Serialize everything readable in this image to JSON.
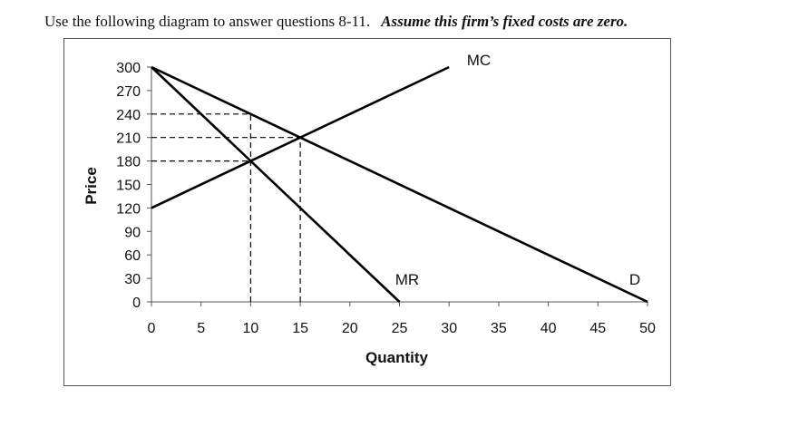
{
  "header": {
    "instruction": "Use the following diagram to answer questions 8-11.",
    "assumption": "Assume this firm’s fixed costs are zero."
  },
  "chart_data": {
    "type": "line",
    "xlabel": "Quantity",
    "ylabel": "Price",
    "xlim": [
      0,
      50
    ],
    "ylim": [
      0,
      300
    ],
    "xticks": [
      0,
      5,
      10,
      15,
      20,
      25,
      30,
      35,
      40,
      45,
      50
    ],
    "yticks": [
      0,
      30,
      60,
      90,
      120,
      150,
      180,
      210,
      240,
      270,
      300
    ],
    "grid": false,
    "series": [
      {
        "name": "MC",
        "x": [
          0,
          30
        ],
        "y": [
          120,
          300
        ]
      },
      {
        "name": "D",
        "x": [
          0,
          50
        ],
        "y": [
          300,
          0
        ]
      },
      {
        "name": "MR",
        "x": [
          0,
          25
        ],
        "y": [
          300,
          0
        ]
      }
    ],
    "reference_lines": [
      {
        "from": [
          0,
          240
        ],
        "to": [
          10,
          240
        ]
      },
      {
        "from": [
          0,
          210
        ],
        "to": [
          15,
          210
        ]
      },
      {
        "from": [
          0,
          180
        ],
        "to": [
          10,
          180
        ]
      },
      {
        "from": [
          10,
          0
        ],
        "to": [
          10,
          240
        ]
      },
      {
        "from": [
          15,
          0
        ],
        "to": [
          15,
          210
        ]
      }
    ],
    "colors": {
      "line": "#000000",
      "axis": "#555555"
    }
  }
}
